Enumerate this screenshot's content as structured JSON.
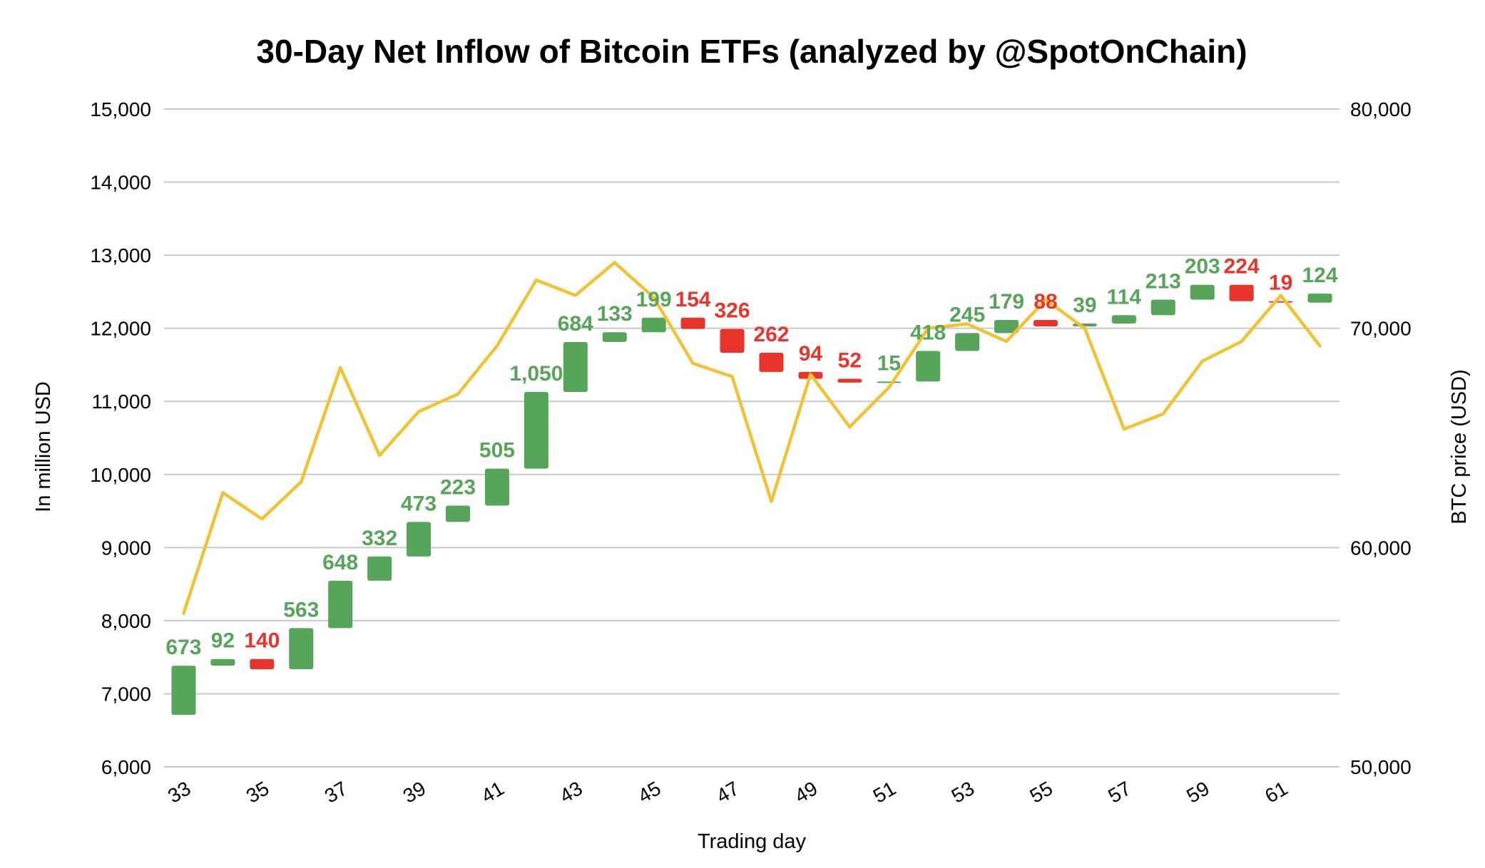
{
  "chart_data": {
    "type": "waterfall",
    "title": "30-Day Net Inflow of Bitcoin ETFs (analyzed by @SpotOnChain)",
    "xlabel": "Trading day",
    "ylabel": "In million USD",
    "y2label": "BTC price (USD)",
    "ylim": [
      6000,
      15000
    ],
    "y2lim": [
      50000,
      80000
    ],
    "y_ticks": [
      "6,000",
      "7,000",
      "8,000",
      "9,000",
      "10,000",
      "11,000",
      "12,000",
      "13,000",
      "14,000",
      "15,000"
    ],
    "y2_ticks": [
      "50,000",
      "60,000",
      "70,000",
      "80,000"
    ],
    "x_tick_labels": [
      "33",
      "35",
      "37",
      "39",
      "41",
      "43",
      "45",
      "47",
      "49",
      "51",
      "53",
      "55",
      "57",
      "59",
      "61"
    ],
    "days": [
      33,
      34,
      35,
      36,
      37,
      38,
      39,
      40,
      41,
      42,
      43,
      44,
      45,
      46,
      47,
      48,
      49,
      50,
      51,
      52,
      53,
      54,
      55,
      56,
      57,
      58,
      59,
      60,
      61,
      62
    ],
    "net_flow": [
      673,
      92,
      -140,
      563,
      648,
      332,
      473,
      223,
      505,
      1050,
      684,
      133,
      199,
      -154,
      -326,
      -262,
      -94,
      -52,
      15,
      418,
      245,
      179,
      -88,
      39,
      114,
      213,
      203,
      -224,
      -19,
      124
    ],
    "bar_labels": [
      "673",
      "92",
      "140",
      "563",
      "648",
      "332",
      "473",
      "223",
      "505",
      "1,050",
      "684",
      "133",
      "199",
      "154",
      "326",
      "262",
      "94",
      "52",
      "15",
      "418",
      "245",
      "179",
      "88",
      "39",
      "114",
      "213",
      "203",
      "224",
      "19",
      "124"
    ],
    "bar_start": [
      6710,
      7383,
      7475,
      7335,
      7898,
      8546,
      8878,
      9351,
      9574,
      10079,
      11129,
      11813,
      11946,
      12145,
      11991,
      11665,
      11403,
      11309,
      11257,
      11272,
      11690,
      11935,
      12114,
      12026,
      12065,
      12179,
      12392,
      12595,
      12371,
      12352
    ],
    "btc_price": [
      57000,
      62500,
      61300,
      63000,
      68200,
      64200,
      66200,
      67000,
      69200,
      72200,
      71500,
      73000,
      71400,
      68400,
      67800,
      62100,
      67900,
      65500,
      67300,
      70000,
      70200,
      69400,
      71300,
      70000,
      65400,
      66100,
      68500,
      69400,
      71500,
      69200
    ],
    "colors": {
      "inflow": "#57a55a",
      "outflow": "#e8352b",
      "btc_line": "#f0c234",
      "inflow_label": "#57a55a",
      "outflow_label": "#e8352b"
    }
  }
}
